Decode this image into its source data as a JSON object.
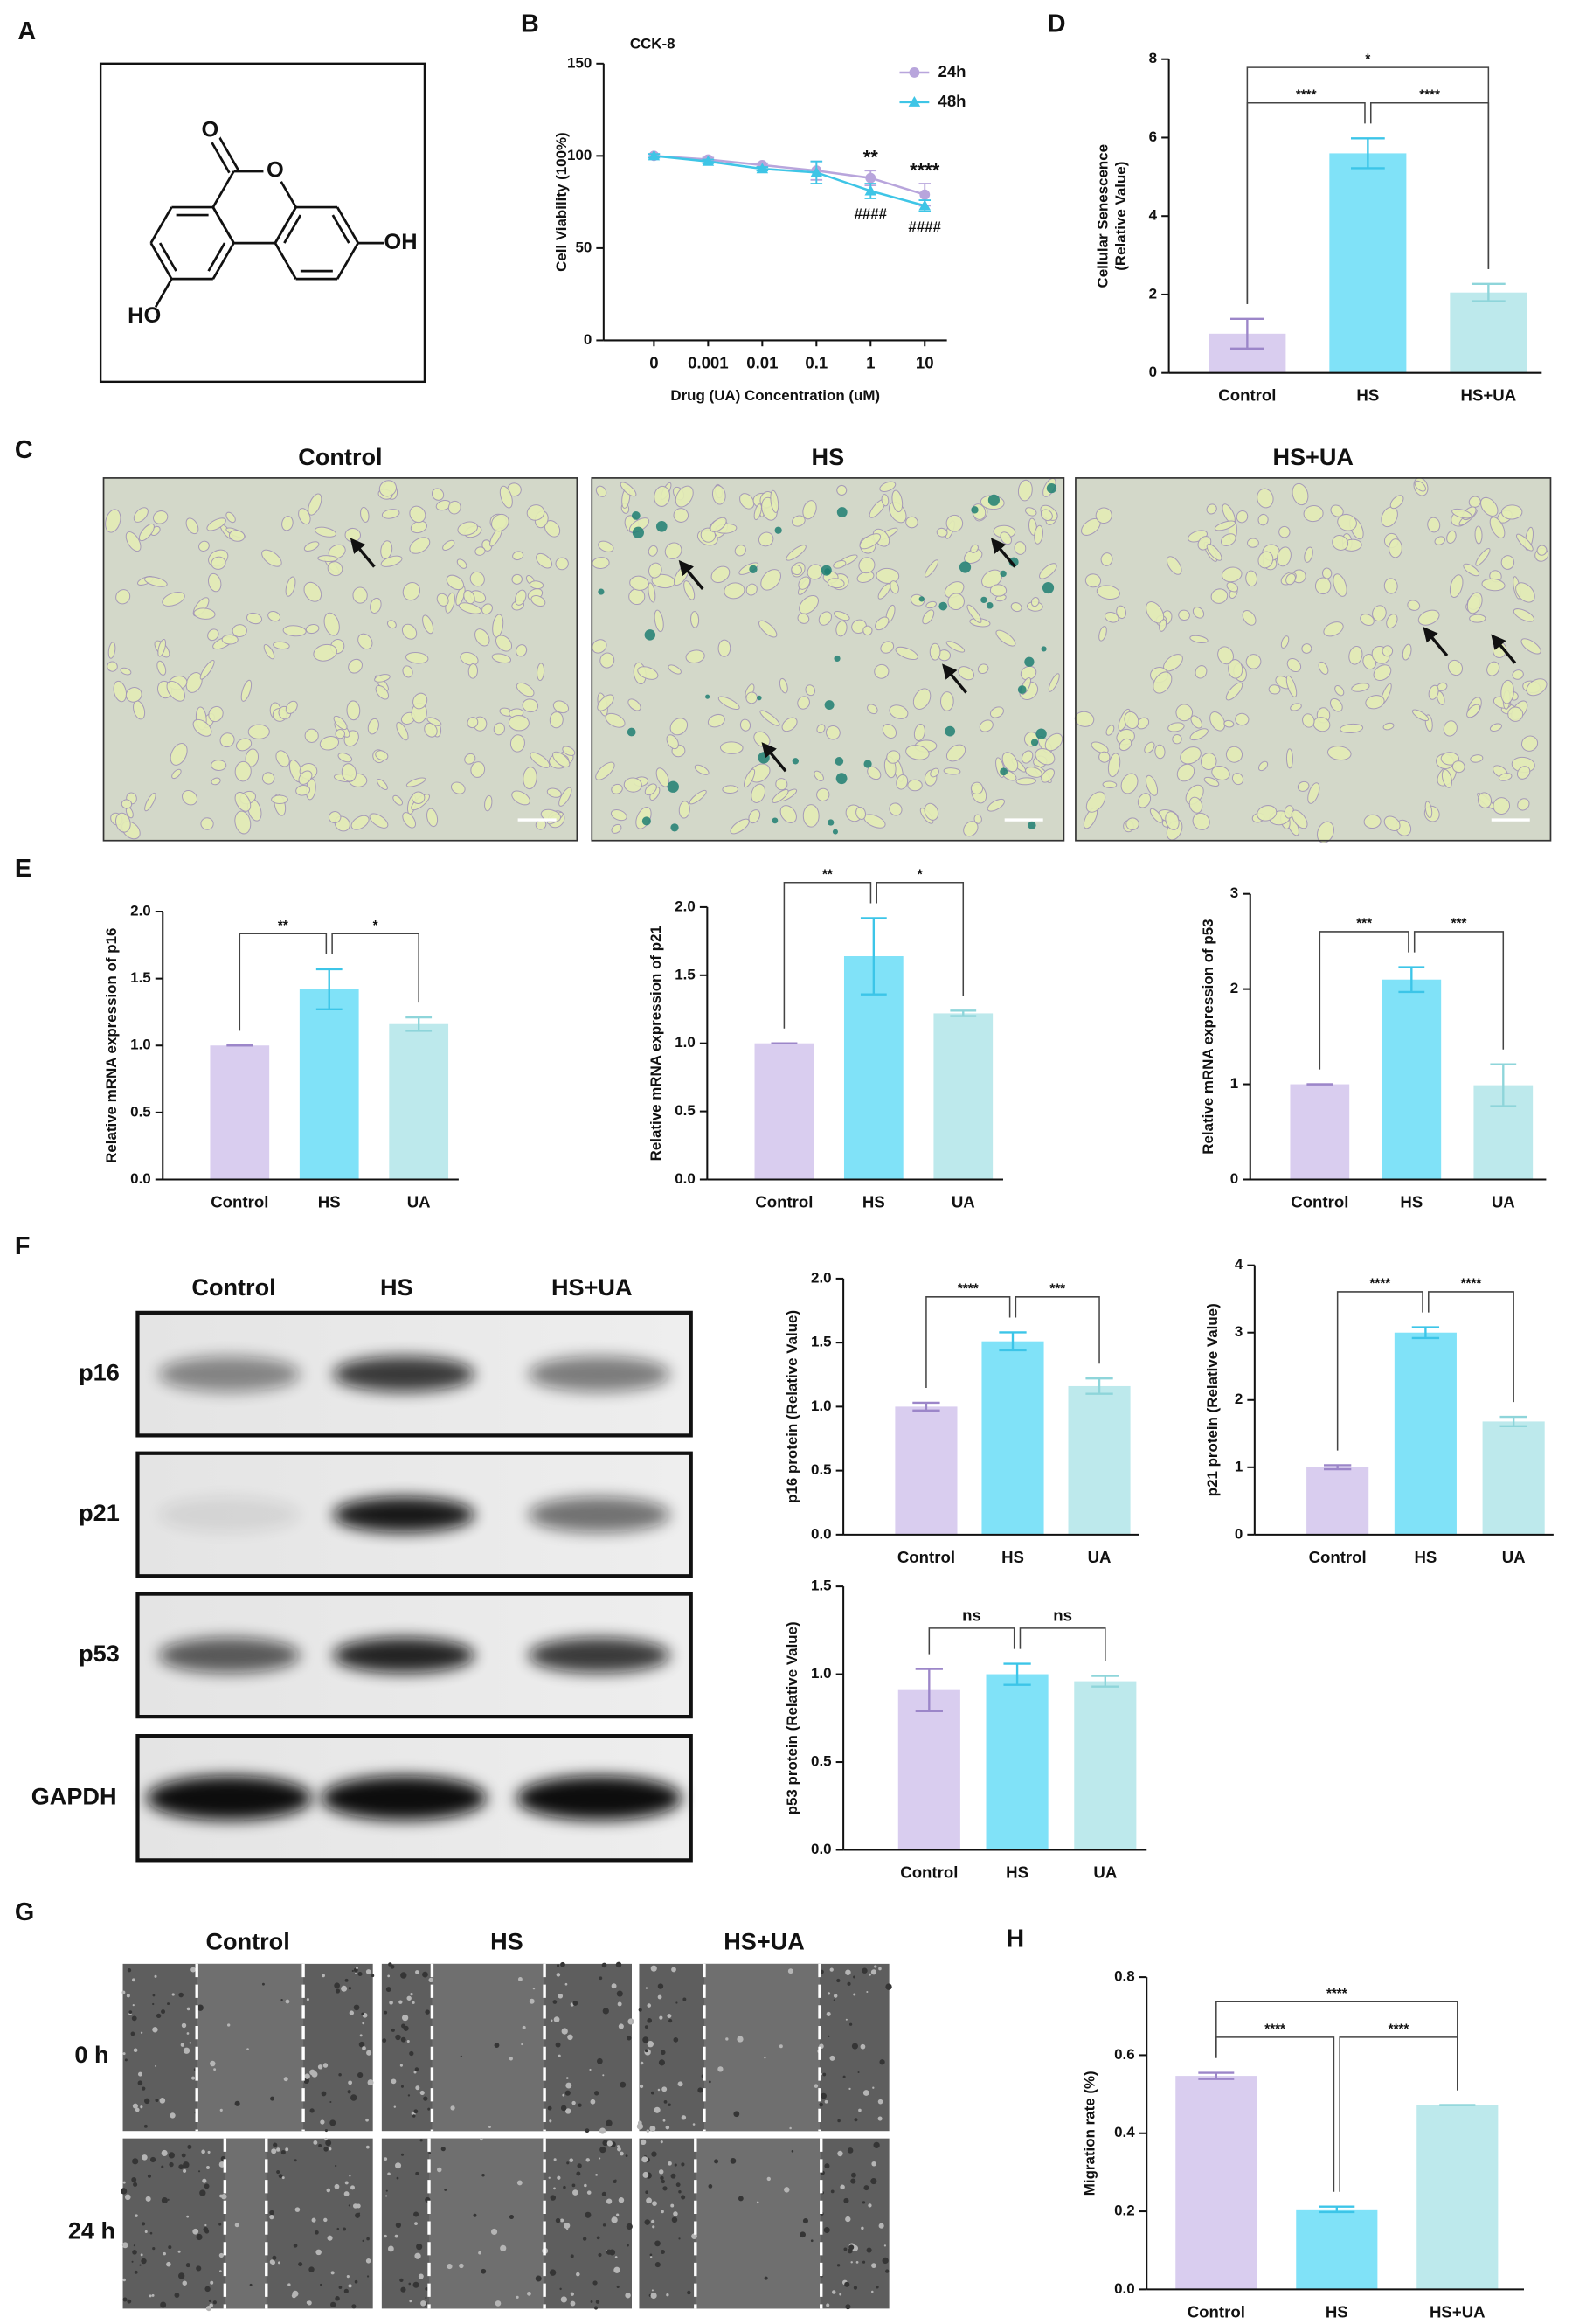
{
  "panel_labels": [
    "A",
    "B",
    "C",
    "D",
    "E",
    "F",
    "G",
    "H"
  ],
  "structure": {
    "atoms": [
      "O",
      "O",
      "OH",
      "HO"
    ]
  },
  "microscopy": {
    "titles": [
      "Control",
      "HS",
      "HS+UA"
    ]
  },
  "western_blot": {
    "lanes": [
      "Control",
      "HS",
      "HS+UA"
    ],
    "proteins": [
      "p16",
      "p21",
      "p53",
      "GAPDH"
    ]
  },
  "scratch_assay": {
    "groups": [
      "Control",
      "HS",
      "HS+UA"
    ],
    "times": [
      "0 h",
      "24 h"
    ]
  },
  "chart_data": [
    {
      "type": "line",
      "title": "CCK-8",
      "xlabel": "Drug (UA) Concentration (uM)",
      "ylabel": "Cell Viability (100%)",
      "categories": [
        "0",
        "0.001",
        "0.01",
        "0.1",
        "1",
        "10"
      ],
      "series": [
        {
          "name": "24h",
          "color": "#b8a5dc",
          "marker": "circle",
          "values": [
            100,
            98,
            95,
            92,
            88,
            79
          ],
          "errors": [
            1,
            1,
            1,
            5,
            4,
            6
          ]
        },
        {
          "name": "48h",
          "color": "#3ec5e6",
          "marker": "triangle",
          "values": [
            100,
            97,
            93,
            91,
            81,
            73
          ],
          "errors": [
            1,
            1,
            1,
            6,
            4,
            3
          ]
        }
      ],
      "ylim": [
        0,
        150
      ],
      "yticks": [
        0,
        50,
        100,
        150
      ],
      "legend": "upper right",
      "annotations": [
        {
          "series": 0,
          "index": 4,
          "text": "**"
        },
        {
          "series": 0,
          "index": 5,
          "text": "****"
        },
        {
          "series": 1,
          "index": 4,
          "text": "####"
        },
        {
          "series": 1,
          "index": 5,
          "text": "####"
        }
      ]
    },
    {
      "type": "bar",
      "ylabel": [
        "Cellular Senescence",
        "(Relative Value)"
      ],
      "categories": [
        "Control",
        "HS",
        "HS+UA"
      ],
      "values": [
        1.0,
        5.6,
        2.05
      ],
      "errors": [
        0.38,
        0.38,
        0.22
      ],
      "colors": [
        "#d9cdef",
        "#80e2f8",
        "#bde9ec"
      ],
      "error_colors": [
        "#9c86c9",
        "#3cc5e8",
        "#8ed5da"
      ],
      "ylim": [
        0,
        8
      ],
      "yticks": [
        0,
        2,
        4,
        6,
        8
      ],
      "annotations": [
        {
          "from": 0,
          "to": 1,
          "text": "****"
        },
        {
          "from": 1,
          "to": 2,
          "text": "****"
        },
        {
          "from": 0,
          "to": 2,
          "text": "*"
        }
      ]
    },
    {
      "type": "bar",
      "ylabel": "Relative mRNA expression of p16",
      "categories": [
        "Control",
        "HS",
        "UA"
      ],
      "values": [
        1.0,
        1.42,
        1.16
      ],
      "errors": [
        0,
        0.15,
        0.05
      ],
      "colors": [
        "#d9cdef",
        "#80e2f8",
        "#bde9ec"
      ],
      "error_colors": [
        "#9c86c9",
        "#3cc5e8",
        "#8ed5da"
      ],
      "ylim": [
        0,
        2
      ],
      "yticks": [
        {
          "value": 0,
          "label": "0.0"
        },
        {
          "value": 0.5,
          "label": "0.5"
        },
        {
          "value": 1,
          "label": "1.0"
        },
        {
          "value": 1.5,
          "label": "1.5"
        },
        {
          "value": 2,
          "label": "2.0"
        }
      ],
      "annotations": [
        {
          "from": 0,
          "to": 1,
          "text": "**"
        },
        {
          "from": 1,
          "to": 2,
          "text": "*"
        }
      ]
    },
    {
      "type": "bar",
      "ylabel": "Relative mRNA expression of p21",
      "categories": [
        "Control",
        "HS",
        "UA"
      ],
      "values": [
        1.0,
        1.64,
        1.22
      ],
      "errors": [
        0,
        0.28,
        0.02
      ],
      "colors": [
        "#d9cdef",
        "#80e2f8",
        "#bde9ec"
      ],
      "error_colors": [
        "#9c86c9",
        "#3cc5e8",
        "#8ed5da"
      ],
      "ylim": [
        0,
        2
      ],
      "yticks": [
        {
          "value": 0,
          "label": "0.0"
        },
        {
          "value": 0.5,
          "label": "0.5"
        },
        {
          "value": 1,
          "label": "1.0"
        },
        {
          "value": 1.5,
          "label": "1.5"
        },
        {
          "value": 2,
          "label": "2.0"
        }
      ],
      "annotations": [
        {
          "from": 0,
          "to": 1,
          "text": "**"
        },
        {
          "from": 1,
          "to": 2,
          "text": "*"
        }
      ]
    },
    {
      "type": "bar",
      "ylabel": "Relative mRNA expression of p53",
      "categories": [
        "Control",
        "HS",
        "UA"
      ],
      "values": [
        1.0,
        2.1,
        0.99
      ],
      "errors": [
        0,
        0.13,
        0.22
      ],
      "colors": [
        "#d9cdef",
        "#80e2f8",
        "#bde9ec"
      ],
      "error_colors": [
        "#9c86c9",
        "#3cc5e8",
        "#8ed5da"
      ],
      "ylim": [
        0,
        3
      ],
      "yticks": [
        0,
        1,
        2,
        3
      ],
      "annotations": [
        {
          "from": 0,
          "to": 1,
          "text": "***"
        },
        {
          "from": 1,
          "to": 2,
          "text": "***"
        }
      ]
    },
    {
      "type": "bar",
      "ylabel": "p16 protein (Relative Value)",
      "categories": [
        "Control",
        "HS",
        "UA"
      ],
      "values": [
        1.0,
        1.51,
        1.16
      ],
      "errors": [
        0.03,
        0.07,
        0.06
      ],
      "colors": [
        "#d9cdef",
        "#80e2f8",
        "#bde9ec"
      ],
      "error_colors": [
        "#9c86c9",
        "#3cc5e8",
        "#8ed5da"
      ],
      "ylim": [
        0,
        2
      ],
      "yticks": [
        {
          "value": 0,
          "label": "0.0"
        },
        {
          "value": 0.5,
          "label": "0.5"
        },
        {
          "value": 1,
          "label": "1.0"
        },
        {
          "value": 1.5,
          "label": "1.5"
        },
        {
          "value": 2,
          "label": "2.0"
        }
      ],
      "annotations": [
        {
          "from": 0,
          "to": 1,
          "text": "****"
        },
        {
          "from": 1,
          "to": 2,
          "text": "***"
        }
      ]
    },
    {
      "type": "bar",
      "ylabel": "p21 protein (Relative Value)",
      "categories": [
        "Control",
        "HS",
        "UA"
      ],
      "values": [
        1.0,
        3.0,
        1.68
      ],
      "errors": [
        0.03,
        0.08,
        0.07
      ],
      "colors": [
        "#d9cdef",
        "#80e2f8",
        "#bde9ec"
      ],
      "error_colors": [
        "#9c86c9",
        "#3cc5e8",
        "#8ed5da"
      ],
      "ylim": [
        0,
        4
      ],
      "yticks": [
        0,
        1,
        2,
        3,
        4
      ],
      "annotations": [
        {
          "from": 0,
          "to": 1,
          "text": "****"
        },
        {
          "from": 1,
          "to": 2,
          "text": "****"
        }
      ]
    },
    {
      "type": "bar",
      "ylabel": "p53 protein (Relative Value)",
      "categories": [
        "Control",
        "HS",
        "UA"
      ],
      "values": [
        0.91,
        1.0,
        0.96
      ],
      "errors": [
        0.12,
        0.06,
        0.03
      ],
      "colors": [
        "#d9cdef",
        "#80e2f8",
        "#bde9ec"
      ],
      "error_colors": [
        "#9c86c9",
        "#3cc5e8",
        "#8ed5da"
      ],
      "ylim": [
        0,
        1.5
      ],
      "yticks": [
        {
          "value": 0,
          "label": "0.0"
        },
        {
          "value": 0.5,
          "label": "0.5"
        },
        {
          "value": 1,
          "label": "1.0"
        },
        {
          "value": 1.5,
          "label": "1.5"
        }
      ],
      "annotations": [
        {
          "from": 0,
          "to": 1,
          "text": "ns"
        },
        {
          "from": 1,
          "to": 2,
          "text": "ns"
        }
      ]
    },
    {
      "type": "bar",
      "ylabel": "Migration rate (%)",
      "categories": [
        "Control",
        "HS",
        "HS+UA"
      ],
      "values": [
        0.547,
        0.205,
        0.472
      ],
      "errors": [
        0.008,
        0.007,
        0
      ],
      "colors": [
        "#d9cdef",
        "#80e2f8",
        "#bde9ec"
      ],
      "error_colors": [
        "#9c86c9",
        "#3cc5e8",
        "#8ed5da"
      ],
      "ylim": [
        0,
        0.8
      ],
      "yticks": [
        {
          "value": 0,
          "label": "0.0"
        },
        {
          "value": 0.2,
          "label": "0.2"
        },
        {
          "value": 0.4,
          "label": "0.4"
        },
        {
          "value": 0.6,
          "label": "0.6"
        },
        {
          "value": 0.8,
          "label": "0.8"
        }
      ],
      "annotations": [
        {
          "from": 0,
          "to": 1,
          "text": "****"
        },
        {
          "from": 1,
          "to": 2,
          "text": "****"
        },
        {
          "from": 0,
          "to": 2,
          "text": "****"
        }
      ]
    }
  ]
}
